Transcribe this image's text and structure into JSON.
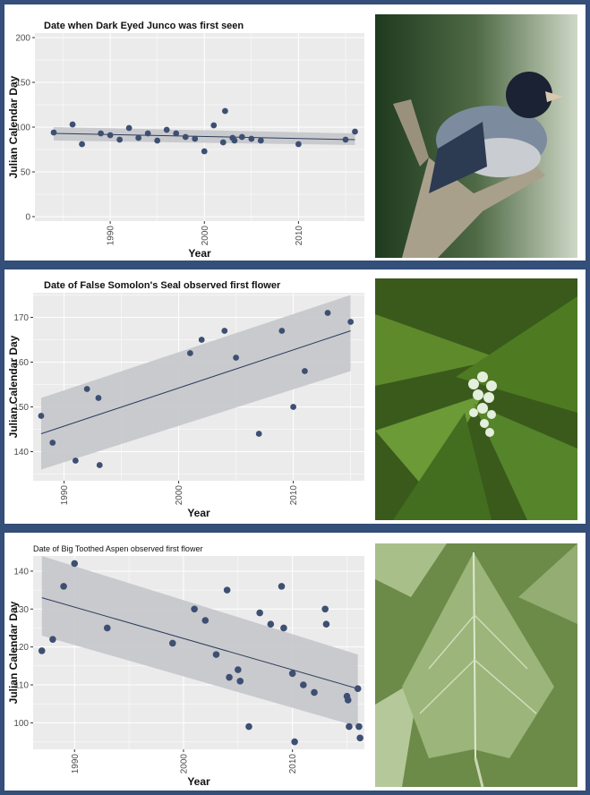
{
  "chart_data": [
    {
      "type": "scatter",
      "title": "Date when Dark Eyed Junco was first seen",
      "xlabel": "Year",
      "ylabel": "Julian Calendar Day",
      "xlim": [
        1982,
        2017
      ],
      "ylim": [
        -5,
        205
      ],
      "yticks": [
        0,
        50,
        100,
        150,
        200
      ],
      "xticks": [
        1990,
        2000,
        2010
      ],
      "grid": true,
      "trendline": {
        "x": [
          1984,
          2016
        ],
        "y": [
          93,
          86
        ],
        "ci_lower": [
          85,
          80
        ],
        "ci_upper": [
          100,
          93
        ]
      },
      "points": [
        {
          "x": 1984,
          "y": 94
        },
        {
          "x": 1986,
          "y": 103
        },
        {
          "x": 1987,
          "y": 81
        },
        {
          "x": 1989,
          "y": 93
        },
        {
          "x": 1990,
          "y": 91
        },
        {
          "x": 1991,
          "y": 86
        },
        {
          "x": 1992,
          "y": 99
        },
        {
          "x": 1993,
          "y": 88
        },
        {
          "x": 1994,
          "y": 93
        },
        {
          "x": 1995,
          "y": 85
        },
        {
          "x": 1996,
          "y": 97
        },
        {
          "x": 1997,
          "y": 93
        },
        {
          "x": 1998,
          "y": 89
        },
        {
          "x": 1999,
          "y": 87
        },
        {
          "x": 2000,
          "y": 73
        },
        {
          "x": 2001,
          "y": 102
        },
        {
          "x": 2002,
          "y": 83
        },
        {
          "x": 2002.2,
          "y": 118
        },
        {
          "x": 2003,
          "y": 88
        },
        {
          "x": 2003.2,
          "y": 85
        },
        {
          "x": 2004,
          "y": 89
        },
        {
          "x": 2005,
          "y": 87
        },
        {
          "x": 2006,
          "y": 85
        },
        {
          "x": 2010,
          "y": 81
        },
        {
          "x": 2015,
          "y": 86
        },
        {
          "x": 2016,
          "y": 95
        }
      ],
      "photo_description": "dark-eyed-junco-photo"
    },
    {
      "type": "scatter",
      "title": "Date of False Somolon's Seal observed first flower",
      "xlabel": "Year",
      "ylabel": "Julian Calendar Day",
      "xlim": [
        1987.3,
        2016.2
      ],
      "ylim": [
        133.5,
        175.5
      ],
      "yticks": [
        140,
        150,
        160,
        170
      ],
      "xticks": [
        1990,
        2000,
        2010
      ],
      "grid": true,
      "trendline": {
        "x": [
          1988,
          2015
        ],
        "y": [
          144,
          167
        ],
        "ci_lower": [
          136,
          158
        ],
        "ci_upper": [
          152,
          175
        ]
      },
      "points": [
        {
          "x": 1988,
          "y": 148
        },
        {
          "x": 1989,
          "y": 142
        },
        {
          "x": 1991,
          "y": 138
        },
        {
          "x": 1992,
          "y": 154
        },
        {
          "x": 1993,
          "y": 152
        },
        {
          "x": 1993.1,
          "y": 137
        },
        {
          "x": 2001,
          "y": 162
        },
        {
          "x": 2002,
          "y": 165
        },
        {
          "x": 2004,
          "y": 167
        },
        {
          "x": 2005,
          "y": 161
        },
        {
          "x": 2007,
          "y": 144
        },
        {
          "x": 2009,
          "y": 167
        },
        {
          "x": 2010,
          "y": 150
        },
        {
          "x": 2011,
          "y": 158
        },
        {
          "x": 2013,
          "y": 171
        },
        {
          "x": 2015,
          "y": 169
        }
      ],
      "photo_description": "false-solomons-seal-photo"
    },
    {
      "type": "scatter",
      "title": "Date of Big Toothed Aspen observed first flower",
      "xlabel": "Year",
      "ylabel": "Julian Calendar Day",
      "xlim": [
        1986.2,
        2016.6
      ],
      "ylim": [
        93,
        144
      ],
      "yticks": [
        100,
        110,
        120,
        130,
        140
      ],
      "xticks": [
        1990,
        2000,
        2010
      ],
      "grid": true,
      "trendline": {
        "x": [
          1987,
          2016
        ],
        "y": [
          133,
          109
        ],
        "ci_lower": [
          123,
          99
        ],
        "ci_upper": [
          144,
          118
        ]
      },
      "points": [
        {
          "x": 1987,
          "y": 119
        },
        {
          "x": 1988,
          "y": 122
        },
        {
          "x": 1989,
          "y": 136
        },
        {
          "x": 1990,
          "y": 142
        },
        {
          "x": 1993,
          "y": 125
        },
        {
          "x": 1999,
          "y": 121
        },
        {
          "x": 2001,
          "y": 130
        },
        {
          "x": 2002,
          "y": 127
        },
        {
          "x": 2003,
          "y": 118
        },
        {
          "x": 2004,
          "y": 135
        },
        {
          "x": 2004.2,
          "y": 112
        },
        {
          "x": 2005,
          "y": 114
        },
        {
          "x": 2005.2,
          "y": 111
        },
        {
          "x": 2006,
          "y": 99
        },
        {
          "x": 2007,
          "y": 129
        },
        {
          "x": 2008,
          "y": 126
        },
        {
          "x": 2009,
          "y": 136
        },
        {
          "x": 2009.2,
          "y": 125
        },
        {
          "x": 2010,
          "y": 113
        },
        {
          "x": 2010.2,
          "y": 95
        },
        {
          "x": 2011,
          "y": 110
        },
        {
          "x": 2012,
          "y": 108
        },
        {
          "x": 2013,
          "y": 130
        },
        {
          "x": 2013.1,
          "y": 126
        },
        {
          "x": 2015,
          "y": 107
        },
        {
          "x": 2015.1,
          "y": 106
        },
        {
          "x": 2015.2,
          "y": 99
        },
        {
          "x": 2016,
          "y": 109
        },
        {
          "x": 2016.1,
          "y": 99
        },
        {
          "x": 2016.2,
          "y": 96
        }
      ],
      "photo_description": "big-toothed-aspen-leaf-photo"
    }
  ],
  "colors": {
    "plot_bg": "#ebebeb",
    "grid": "#ffffff",
    "points": "#3d4f72",
    "trendline": "#2c3e5c",
    "ci_band": "#c5c7cb",
    "frame": "#34507a"
  }
}
